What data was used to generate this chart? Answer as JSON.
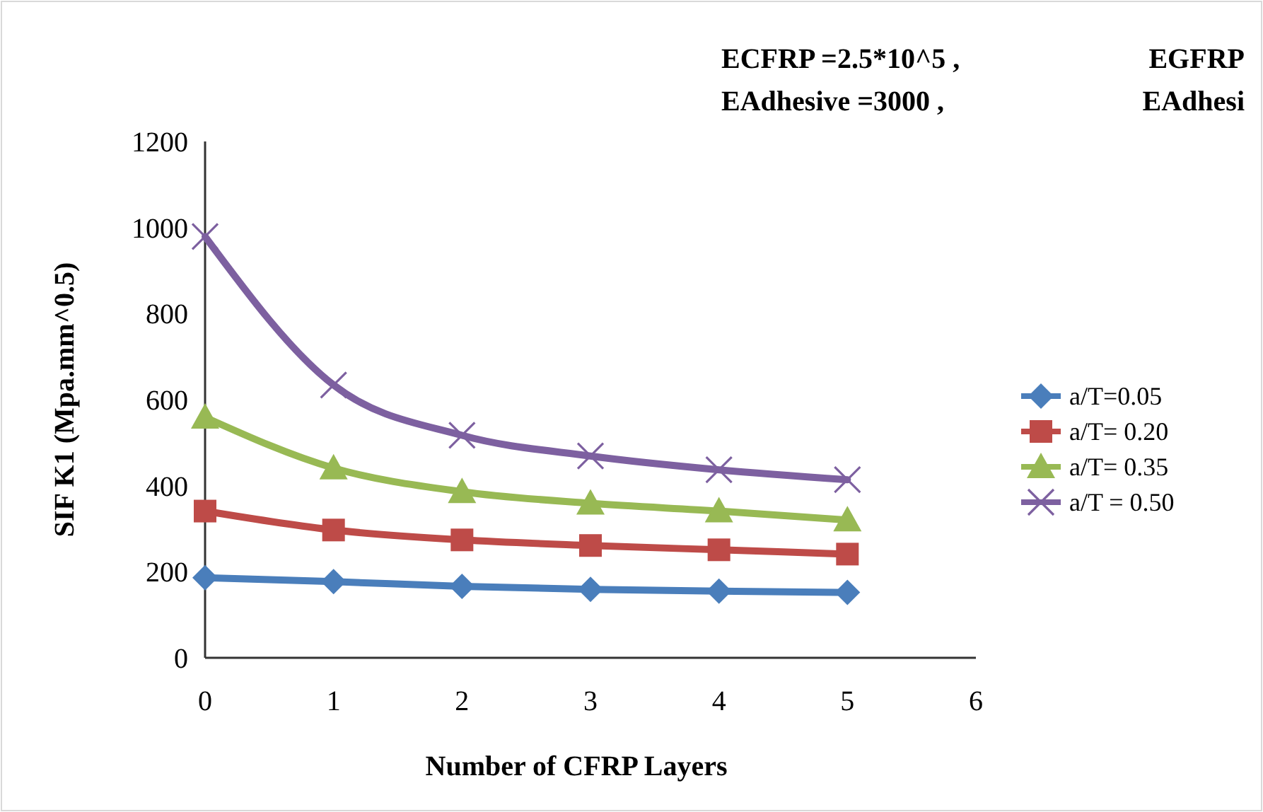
{
  "chart_data": {
    "type": "line",
    "xlabel": "Number of CFRP Layers",
    "ylabel": "SIF K1 (Mpa.mm^0.5)",
    "annotations": [
      "ECFRP =2.5*10^5 ,",
      "EGFRP",
      "EAdhesive =3000 ,",
      "EAdhesi"
    ],
    "x": [
      0,
      1,
      2,
      3,
      4,
      5
    ],
    "xlim": [
      0,
      6
    ],
    "xticks": [
      0,
      1,
      2,
      3,
      4,
      5,
      6
    ],
    "ylim": [
      0,
      1200
    ],
    "yticks": [
      0,
      200,
      400,
      600,
      800,
      1000,
      1200
    ],
    "grid": false,
    "legend": "right",
    "series": [
      {
        "name": "a/T=0.05",
        "color": "#4a7ebb",
        "marker": "diamond",
        "values": [
          186,
          177,
          166,
          159,
          155,
          152
        ]
      },
      {
        "name": "a/T= 0.20",
        "color": "#be4b48",
        "marker": "square",
        "values": [
          341,
          297,
          274,
          261,
          251,
          241
        ]
      },
      {
        "name": "a/T= 0.35",
        "color": "#98b954",
        "marker": "triangle",
        "values": [
          559,
          441,
          386,
          359,
          341,
          320
        ]
      },
      {
        "name": "a/T = 0.50",
        "color": "#7d60a0",
        "marker": "cross",
        "values": [
          979,
          634,
          517,
          469,
          437,
          414
        ]
      }
    ]
  }
}
